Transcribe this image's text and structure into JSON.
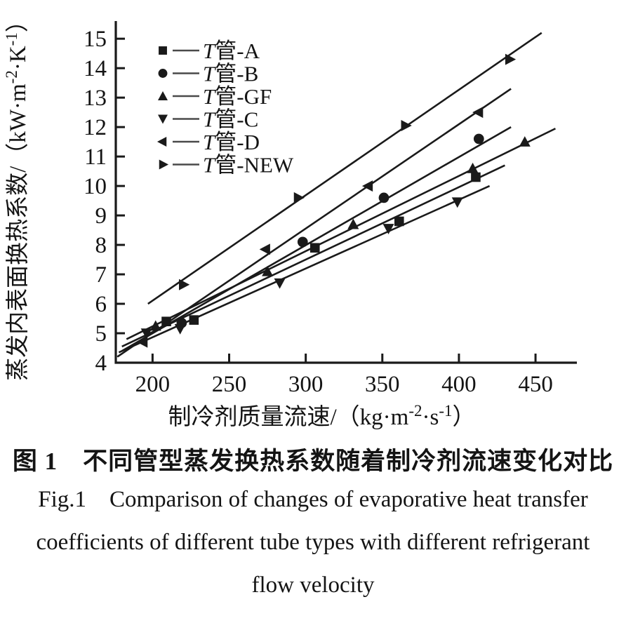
{
  "page": {
    "background": "#ffffff",
    "ink_color": "#1a1a1a"
  },
  "figure_caption": {
    "zh": "图 1　不同管型蒸发换热系数随着制冷剂流速变化对比",
    "en_line1": "Fig.1　Comparison of changes of evaporative heat transfer",
    "en_line2": "coefficients of different tube types with different refrigerant",
    "en_line3": "flow velocity"
  },
  "chart_data": {
    "type": "scatter",
    "title": "",
    "xlabel": "制冷剂质量流速/（kg·m⁻²·s⁻¹）",
    "ylabel": "蒸发内表面换热系数/（kW·m⁻²·K⁻¹）",
    "xlabel_parts": [
      {
        "t": "制冷剂质量流速/（kg·m"
      },
      {
        "t": "-2",
        "sup": true
      },
      {
        "t": "·s"
      },
      {
        "t": "-1",
        "sup": true
      },
      {
        "t": "）"
      }
    ],
    "ylabel_parts": [
      {
        "t": "蒸发内表面换热系数/（kW·m"
      },
      {
        "t": "-2",
        "sup": true
      },
      {
        "t": "·K"
      },
      {
        "t": "-1",
        "sup": true
      },
      {
        "t": "）"
      }
    ],
    "xlim": [
      176,
      477
    ],
    "ylim": [
      4,
      15.6
    ],
    "xticks": [
      200,
      250,
      300,
      350,
      400,
      450
    ],
    "yticks": [
      4,
      5,
      6,
      7,
      8,
      9,
      10,
      11,
      12,
      13,
      14,
      15
    ],
    "grid": false,
    "legend_position": "upper-left-inside",
    "axis_color": "#1a1a1a",
    "series": [
      {
        "id": "tube-a",
        "name": "T管-A",
        "legend_italic_prefix": "T",
        "legend_rest": "管-A",
        "marker": "square",
        "color": "#1a1a1a",
        "points": [
          [
            209,
            5.4
          ],
          [
            227,
            5.45
          ],
          [
            306,
            7.9
          ],
          [
            361,
            8.8
          ],
          [
            411,
            10.3
          ]
        ],
        "fit_line": {
          "x1": 180,
          "y1": 4.55,
          "x2": 430,
          "y2": 10.7
        }
      },
      {
        "id": "tube-b",
        "name": "T管-B",
        "legend_italic_prefix": "T",
        "legend_rest": "管-B",
        "marker": "circle",
        "color": "#1a1a1a",
        "points": [
          [
            219,
            5.35
          ],
          [
            298,
            8.1
          ],
          [
            351,
            9.6
          ],
          [
            413,
            11.6
          ]
        ],
        "fit_line": {
          "x1": 180,
          "y1": 4.4,
          "x2": 434,
          "y2": 12.0
        }
      },
      {
        "id": "tube-gf",
        "name": "T管-GF",
        "legend_italic_prefix": "T",
        "legend_rest": "管-GF",
        "marker": "triangle-up",
        "color": "#1a1a1a",
        "points": [
          [
            202,
            5.25
          ],
          [
            275,
            7.1
          ],
          [
            331,
            8.7
          ],
          [
            409,
            10.6
          ],
          [
            443,
            11.5
          ]
        ],
        "fit_line": {
          "x1": 183,
          "y1": 4.8,
          "x2": 463,
          "y2": 11.95
        }
      },
      {
        "id": "tube-c",
        "name": "T管-C",
        "legend_italic_prefix": "T",
        "legend_rest": "管-C",
        "marker": "triangle-down",
        "color": "#1a1a1a",
        "points": [
          [
            196,
            5.0
          ],
          [
            218,
            5.15
          ],
          [
            283,
            6.7
          ],
          [
            354,
            8.55
          ],
          [
            399,
            9.45
          ]
        ],
        "fit_line": {
          "x1": 178,
          "y1": 4.35,
          "x2": 420,
          "y2": 10.0
        }
      },
      {
        "id": "tube-d",
        "name": "T管-D",
        "legend_italic_prefix": "T",
        "legend_rest": "管-D",
        "marker": "triangle-left",
        "color": "#1a1a1a",
        "points": [
          [
            194,
            4.7
          ],
          [
            274,
            7.85
          ],
          [
            341,
            10.0
          ],
          [
            413,
            12.5
          ]
        ],
        "fit_line": {
          "x1": 177,
          "y1": 4.2,
          "x2": 434,
          "y2": 13.3
        }
      },
      {
        "id": "tube-new",
        "name": "T管-NEW",
        "legend_italic_prefix": "T",
        "legend_rest": "管-NEW",
        "marker": "triangle-right",
        "color": "#1a1a1a",
        "points": [
          [
            220,
            6.65
          ],
          [
            295,
            9.6
          ],
          [
            365,
            12.05
          ],
          [
            433,
            14.3
          ]
        ],
        "fit_line": {
          "x1": 197,
          "y1": 6.0,
          "x2": 454,
          "y2": 15.2
        }
      }
    ]
  }
}
